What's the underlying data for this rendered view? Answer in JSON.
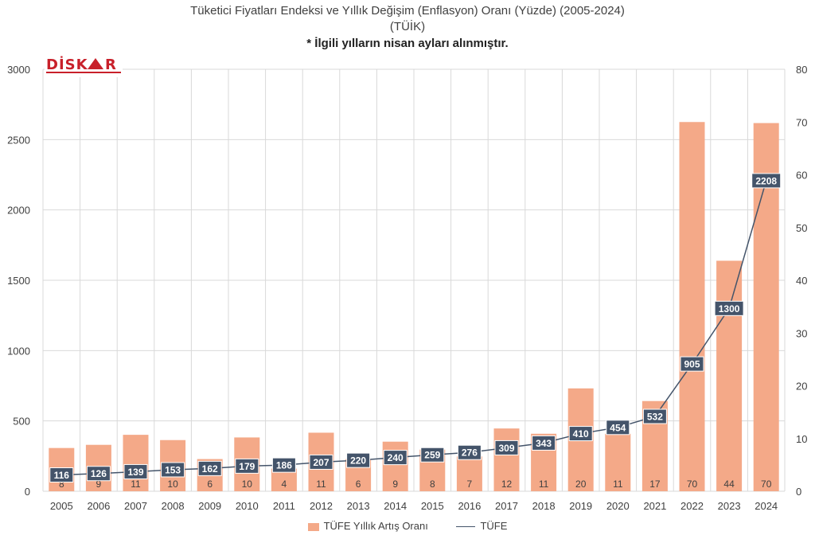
{
  "title": {
    "line1": "Tüketici Fiyatları Endeksi ve Yıllık Değişim (Enflasyon) Oranı (Yüzde) (2005-2024)",
    "line2": "(TÜİK)",
    "line3": "* İlgili yılların nisan ayları alınmıştır."
  },
  "logo": {
    "text": "DİSK AR"
  },
  "chart_data": {
    "type": "bar",
    "categories": [
      "2005",
      "2006",
      "2007",
      "2008",
      "2009",
      "2010",
      "2011",
      "2012",
      "2013",
      "2014",
      "2015",
      "2016",
      "2017",
      "2018",
      "2019",
      "2020",
      "2021",
      "2022",
      "2023",
      "2024"
    ],
    "series": [
      {
        "name": "TÜFE Yıllık Artış Oranı",
        "type": "bar",
        "axis": "right",
        "values": [
          8.2,
          8.8,
          10.7,
          9.7,
          6.1,
          10.2,
          4.3,
          11.1,
          6.1,
          9.4,
          7.9,
          6.6,
          11.9,
          10.9,
          19.5,
          10.9,
          17.1,
          70.0,
          43.7,
          69.8
        ],
        "labels": [
          "8",
          "9",
          "11",
          "10",
          "6",
          "10",
          "4",
          "11",
          "6",
          "9",
          "8",
          "7",
          "12",
          "11",
          "20",
          "11",
          "17",
          "70",
          "44",
          "70"
        ]
      },
      {
        "name": "TÜFE",
        "type": "line",
        "axis": "left",
        "values": [
          116,
          126,
          139,
          153,
          162,
          179,
          186,
          207,
          220,
          240,
          259,
          276,
          309,
          343,
          410,
          454,
          532,
          905,
          1300,
          2208
        ],
        "labels": [
          "116",
          "126",
          "139",
          "153",
          "162",
          "179",
          "186",
          "207",
          "220",
          "240",
          "259",
          "276",
          "309",
          "343",
          "410",
          "454",
          "532",
          "905",
          "1300",
          "2208"
        ]
      }
    ],
    "left_axis": {
      "ylim": [
        0,
        3000
      ],
      "ticks": [
        "0",
        "500",
        "1000",
        "1500",
        "2000",
        "2500",
        "3000"
      ]
    },
    "right_axis": {
      "ylim": [
        0,
        80
      ],
      "ticks": [
        "0",
        "10",
        "20",
        "30",
        "40",
        "50",
        "60",
        "70",
        "80"
      ]
    },
    "grid": true,
    "legend": "bottom",
    "colors": {
      "bar": "#f4a988",
      "line": "#44546a",
      "label_box": "#44546a",
      "grid": "#d9d9d9"
    }
  }
}
